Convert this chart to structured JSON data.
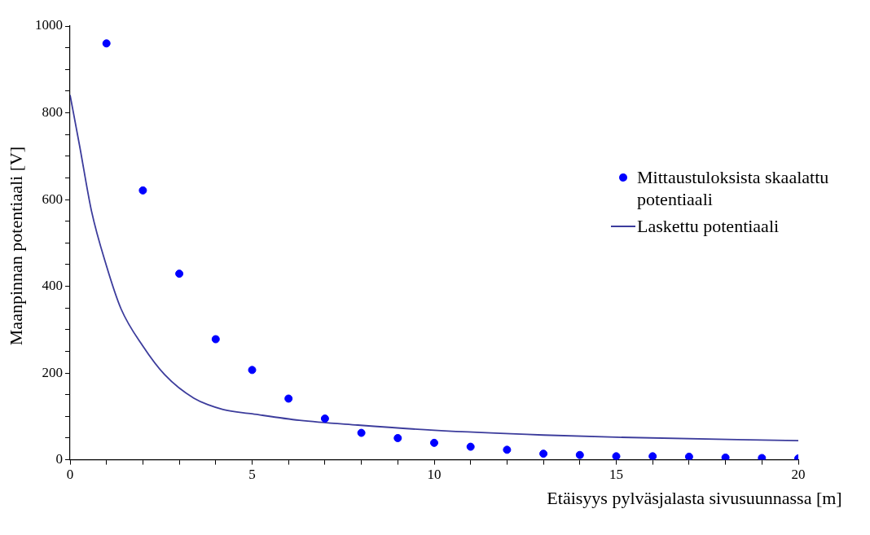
{
  "chart_data": {
    "type": "scatter",
    "xlabel": "Etäisyys pylväsjalasta sivusuunnassa [m]",
    "ylabel": "Maanpinnan potentiaali [V]",
    "xlim": [
      0,
      20
    ],
    "xticks": [
      0,
      {
        "value": 1,
        "label": null
      },
      {
        "value": 2,
        "label": null
      },
      {
        "value": 3,
        "label": null
      },
      {
        "value": 4,
        "label": null
      },
      5,
      {
        "value": 6,
        "label": null
      },
      {
        "value": 7,
        "label": null
      },
      {
        "value": 8,
        "label": null
      },
      {
        "value": 9,
        "label": null
      },
      10,
      {
        "value": 11,
        "label": null
      },
      {
        "value": 12,
        "label": null
      },
      {
        "value": 13,
        "label": null
      },
      {
        "value": 14,
        "label": null
      },
      15,
      {
        "value": 16,
        "label": null
      },
      {
        "value": 17,
        "label": null
      },
      {
        "value": 18,
        "label": null
      },
      {
        "value": 19,
        "label": null
      },
      20
    ],
    "ylim": [
      0,
      1000
    ],
    "yticks": [
      0,
      {
        "value": 50,
        "label": null
      },
      {
        "value": 100,
        "label": null
      },
      {
        "value": 150,
        "label": null
      },
      200,
      {
        "value": 250,
        "label": null
      },
      {
        "value": 300,
        "label": null
      },
      {
        "value": 350,
        "label": null
      },
      400,
      {
        "value": 450,
        "label": null
      },
      {
        "value": 500,
        "label": null
      },
      {
        "value": 550,
        "label": null
      },
      600,
      {
        "value": 650,
        "label": null
      },
      {
        "value": 700,
        "label": null
      },
      {
        "value": 750,
        "label": null
      },
      800,
      {
        "value": 850,
        "label": null
      },
      {
        "value": 900,
        "label": null
      },
      {
        "value": 950,
        "label": null
      },
      1000
    ],
    "grid": false,
    "legend": "right",
    "series": [
      {
        "name": "Mittaustuloksista skaalattu potentiaali",
        "marker": "circle",
        "color": "#0000ff",
        "x": [
          1,
          2,
          3,
          4,
          5,
          6,
          7,
          8,
          9,
          10,
          11,
          12,
          13,
          14,
          15,
          16,
          17,
          18,
          19,
          20
        ],
        "values": [
          960,
          621,
          429,
          278,
          207,
          141,
          95,
          62,
          50,
          39,
          30,
          23,
          14,
          11,
          8,
          8,
          7,
          5,
          4,
          3
        ]
      },
      {
        "name": "Laskettu potentiaali",
        "type": "line",
        "marker": "none",
        "color": "#3c3c9c",
        "x": [
          0,
          0.26,
          0.59,
          1,
          1.4,
          2,
          2.6,
          3.4,
          4.2,
          5,
          6.3,
          7.9,
          10,
          13,
          15,
          20
        ],
        "values": [
          841,
          725,
          573,
          447,
          348,
          262,
          196,
          142,
          116,
          106,
          91,
          80,
          68,
          57,
          52,
          44
        ]
      }
    ]
  }
}
